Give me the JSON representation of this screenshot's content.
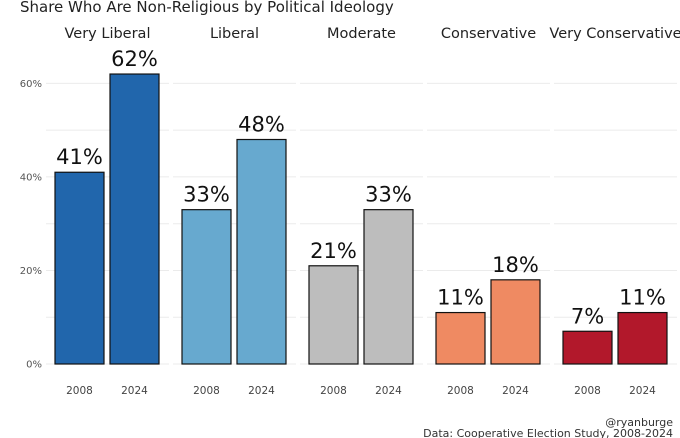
{
  "chart_data": {
    "type": "bar",
    "title": "Share Who Are Non-Religious by Political Ideology",
    "facets": [
      "Very Liberal",
      "Liberal",
      "Moderate",
      "Conservative",
      "Very Conservative"
    ],
    "categories": [
      "2008",
      "2024"
    ],
    "series": [
      {
        "facet": "Very Liberal",
        "values": [
          41,
          62
        ],
        "labels": [
          "41%",
          "62%"
        ],
        "color": "#2166ac"
      },
      {
        "facet": "Liberal",
        "values": [
          33,
          48
        ],
        "labels": [
          "33%",
          "48%"
        ],
        "color": "#67a9cf"
      },
      {
        "facet": "Moderate",
        "values": [
          21,
          33
        ],
        "labels": [
          "21%",
          "33%"
        ],
        "color": "#bdbdbd"
      },
      {
        "facet": "Conservative",
        "values": [
          11,
          18
        ],
        "labels": [
          "11%",
          "18%"
        ],
        "color": "#ef8a62"
      },
      {
        "facet": "Very Conservative",
        "values": [
          7,
          11
        ],
        "labels": [
          "7%",
          "11%"
        ],
        "color": "#b2182b"
      }
    ],
    "y_ticks": [
      0,
      20,
      40,
      60
    ],
    "y_tick_labels": [
      "0%",
      "20%",
      "40%",
      "60%"
    ],
    "ylim": [
      0,
      65
    ],
    "grid": true,
    "legend": "none",
    "caption_handle": "@ryanburge",
    "caption_source": "Data: Cooperative Election Study, 2008-2024"
  }
}
